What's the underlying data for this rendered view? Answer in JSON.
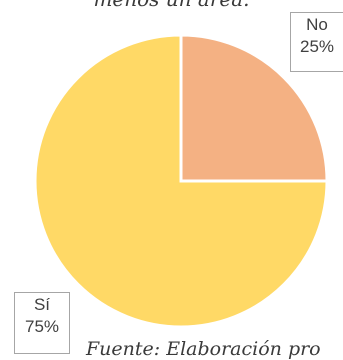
{
  "chart_data": {
    "type": "pie",
    "title": "menos un área.",
    "source_note": "Fuente: Elaboración pro",
    "categories": [
      "No",
      "Sí"
    ],
    "values": [
      25,
      75
    ],
    "labels": [
      "No",
      "Sí"
    ],
    "percent_labels": [
      "25%",
      "75%"
    ],
    "colors": [
      "#f4b183",
      "#ffd966"
    ],
    "start_angle_deg": 0,
    "direction": "clockwise"
  }
}
